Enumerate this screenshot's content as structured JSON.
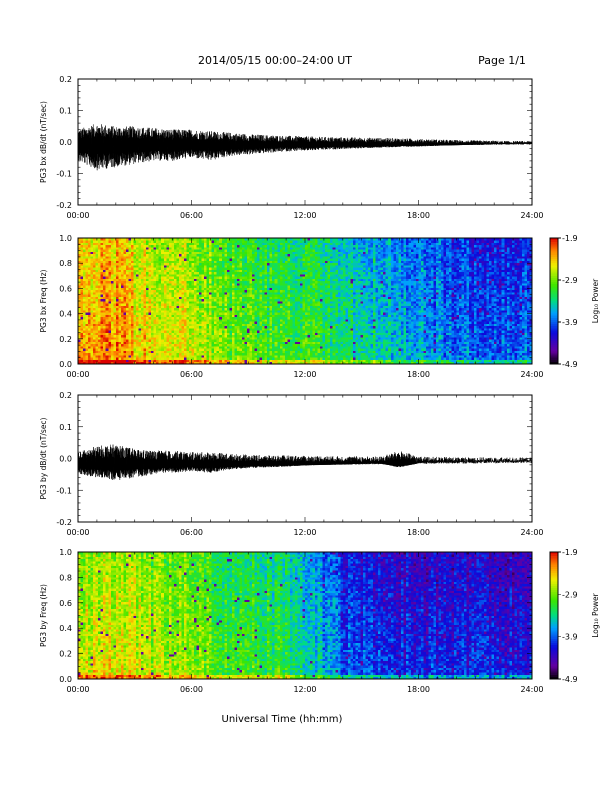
{
  "header": {
    "title": "2014/05/15  00:00–24:00 UT",
    "page": "Page 1/1"
  },
  "x_label": "Universal Time (hh:mm)",
  "chart_data": [
    {
      "type": "line",
      "ylabel": "PG3 bx dB/dt (nT/sec)",
      "x_ticks": [
        "00:00",
        "06:00",
        "12:00",
        "18:00",
        "24:00"
      ],
      "xlim": [
        0,
        24
      ],
      "ylim": [
        -0.2,
        0.2
      ],
      "y_ticks": [
        "-0.2",
        "-0.1",
        "0.0",
        "0.1",
        "0.2"
      ],
      "envelope": {
        "hours": [
          0,
          1,
          2,
          3,
          4,
          5,
          6,
          7,
          8,
          9,
          10,
          11,
          12,
          13,
          14,
          15,
          16,
          17,
          18,
          19,
          20,
          21,
          22,
          23,
          24
        ],
        "max": [
          0.04,
          0.06,
          0.05,
          0.05,
          0.045,
          0.04,
          0.04,
          0.035,
          0.03,
          0.025,
          0.022,
          0.02,
          0.018,
          0.016,
          0.015,
          0.014,
          0.013,
          0.012,
          0.01,
          0.008,
          0.006,
          0.005,
          0.004,
          0.003,
          0.003
        ],
        "min": [
          -0.06,
          -0.09,
          -0.08,
          -0.07,
          -0.06,
          -0.06,
          -0.05,
          -0.06,
          -0.045,
          -0.04,
          -0.035,
          -0.03,
          -0.028,
          -0.025,
          -0.022,
          -0.02,
          -0.018,
          -0.016,
          -0.014,
          -0.012,
          -0.01,
          -0.008,
          -0.006,
          -0.005,
          -0.005
        ],
        "center": -0.01
      },
      "line_color": "#000000"
    },
    {
      "type": "heatmap",
      "ylabel": "PG3 bx Freq (Hz)",
      "x_ticks": [
        "00:00",
        "06:00",
        "12:00",
        "18:00",
        "24:00"
      ],
      "xlim": [
        0,
        24
      ],
      "ylim": [
        0.0,
        1.0
      ],
      "y_ticks": [
        "0.0",
        "0.2",
        "0.4",
        "0.6",
        "0.8",
        "1.0"
      ],
      "colorbar": {
        "label": "Log₁₀ Power",
        "ticks": [
          "-1.9",
          "-2.9",
          "-3.9",
          "-4.9"
        ],
        "range": [
          -4.9,
          -1.9
        ]
      },
      "power_profile": {
        "hours": [
          0,
          2,
          4,
          6,
          8,
          10,
          12,
          14,
          16,
          18,
          20,
          22,
          24
        ],
        "log_power": [
          -2.3,
          -2.2,
          -2.5,
          -2.6,
          -2.9,
          -3.0,
          -3.1,
          -3.3,
          -3.4,
          -3.6,
          -3.8,
          -3.9,
          -3.9
        ]
      }
    },
    {
      "type": "line",
      "ylabel": "PG3 by dB/dt (nT/sec)",
      "x_ticks": [
        "00:00",
        "06:00",
        "12:00",
        "18:00",
        "24:00"
      ],
      "xlim": [
        0,
        24
      ],
      "ylim": [
        -0.2,
        0.2
      ],
      "y_ticks": [
        "-0.2",
        "-0.1",
        "0.0",
        "0.1",
        "0.2"
      ],
      "envelope": {
        "hours": [
          0,
          1,
          2,
          3,
          4,
          5,
          6,
          7,
          8,
          9,
          10,
          11,
          12,
          13,
          14,
          15,
          16,
          17,
          18,
          19,
          20,
          21,
          22,
          23,
          24
        ],
        "max": [
          0.02,
          0.04,
          0.045,
          0.03,
          0.025,
          0.025,
          0.02,
          0.02,
          0.015,
          0.012,
          0.01,
          0.01,
          0.008,
          0.008,
          0.007,
          0.007,
          0.006,
          0.025,
          0.006,
          0.005,
          0.004,
          0.004,
          0.003,
          0.003,
          0.003
        ],
        "min": [
          -0.05,
          -0.06,
          -0.07,
          -0.06,
          -0.05,
          -0.045,
          -0.04,
          -0.045,
          -0.035,
          -0.03,
          -0.028,
          -0.025,
          -0.022,
          -0.02,
          -0.018,
          -0.016,
          -0.014,
          -0.03,
          -0.012,
          -0.01,
          -0.008,
          -0.007,
          -0.006,
          -0.005,
          -0.005
        ],
        "center": -0.02
      },
      "line_color": "#000000"
    },
    {
      "type": "heatmap",
      "ylabel": "PG3 by Freq (Hz)",
      "x_ticks": [
        "00:00",
        "06:00",
        "12:00",
        "18:00",
        "24:00"
      ],
      "xlim": [
        0,
        24
      ],
      "ylim": [
        0.0,
        1.0
      ],
      "y_ticks": [
        "0.0",
        "0.2",
        "0.4",
        "0.6",
        "0.8",
        "1.0"
      ],
      "colorbar": {
        "label": "Log₁₀ Power",
        "ticks": [
          "-1.9",
          "-2.9",
          "-3.9",
          "-4.9"
        ],
        "range": [
          -4.9,
          -1.9
        ]
      },
      "power_profile": {
        "hours": [
          0,
          2,
          4,
          6,
          8,
          10,
          12,
          14,
          16,
          18,
          20,
          22,
          24
        ],
        "log_power": [
          -2.6,
          -2.5,
          -2.7,
          -2.8,
          -3.0,
          -3.1,
          -3.3,
          -3.9,
          -4.0,
          -4.1,
          -4.1,
          -4.1,
          -4.2
        ]
      }
    }
  ]
}
